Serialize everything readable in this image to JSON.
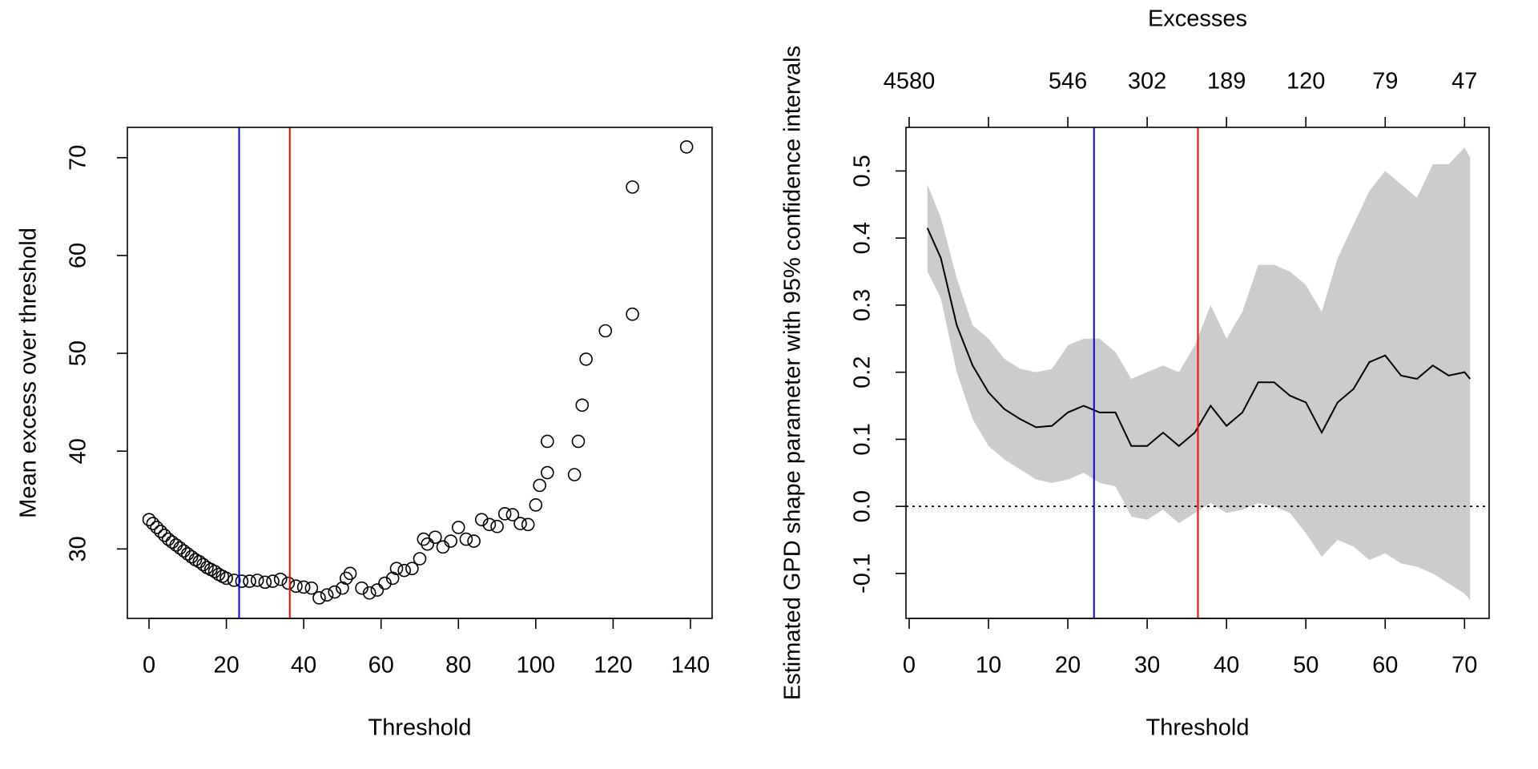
{
  "chart_data": [
    {
      "type": "scatter",
      "xlabel": "Threshold",
      "ylabel": "Mean excess over threshold",
      "x": [
        0,
        1,
        2,
        3,
        4,
        5,
        6,
        7,
        8,
        9,
        10,
        11,
        12,
        13,
        14,
        15,
        16,
        17,
        18,
        19,
        20,
        22,
        24,
        26,
        28,
        30,
        32,
        34,
        36,
        38,
        40,
        42,
        44,
        46,
        48,
        50,
        51,
        52,
        55,
        57,
        59,
        61,
        63,
        64,
        66,
        68,
        70,
        71,
        72,
        74,
        76,
        78,
        80,
        82,
        84,
        86,
        88,
        90,
        92,
        94,
        96,
        98,
        100,
        101,
        103,
        103,
        110,
        111,
        112,
        113,
        118,
        125,
        125,
        139
      ],
      "values": [
        33.0,
        32.6,
        32.2,
        31.8,
        31.4,
        31.0,
        30.7,
        30.4,
        30.1,
        29.8,
        29.5,
        29.2,
        28.9,
        28.7,
        28.4,
        28.1,
        27.9,
        27.7,
        27.4,
        27.2,
        27.0,
        26.8,
        26.7,
        26.7,
        26.8,
        26.6,
        26.7,
        26.9,
        26.5,
        26.2,
        26.1,
        26.0,
        25.0,
        25.3,
        25.6,
        26.0,
        27.0,
        27.5,
        26.0,
        25.5,
        25.8,
        26.5,
        27.0,
        28.0,
        27.8,
        28.0,
        29.0,
        31.0,
        30.5,
        31.2,
        30.2,
        30.8,
        32.2,
        31.0,
        30.8,
        33.0,
        32.5,
        32.3,
        33.6,
        33.5,
        32.6,
        32.5,
        34.5,
        36.5,
        37.8,
        41.0,
        37.6,
        41.0,
        44.7,
        49.4,
        52.3,
        54.0,
        67.0,
        71.1
      ],
      "color": "#000000",
      "xlim": [
        -5.6,
        145.6
      ],
      "xticks": [
        0,
        20,
        40,
        60,
        80,
        100,
        120,
        140
      ],
      "ylim": [
        22.9,
        73.1
      ],
      "yticks": [
        30,
        40,
        50,
        60,
        70
      ],
      "vlines": [
        {
          "x": 23.3,
          "color": "#0000ff"
        },
        {
          "x": 36.4,
          "color": "#ff0000"
        }
      ]
    },
    {
      "type": "line",
      "xlabel": "Threshold",
      "ylabel": "Estimated GPD shape parameter with 95% confidence intervals",
      "x2label": "Excesses",
      "x": [
        2.3,
        4,
        6,
        8,
        10,
        12,
        14,
        16,
        18,
        20,
        22,
        24,
        26,
        28,
        30,
        32,
        34,
        36,
        38,
        40,
        42,
        44,
        46,
        48,
        50,
        52,
        54,
        56,
        58,
        60,
        62,
        64,
        66,
        68,
        70,
        70.7
      ],
      "series": [
        {
          "color": "#000000",
          "values": [
            0.415,
            0.37,
            0.27,
            0.21,
            0.17,
            0.145,
            0.13,
            0.118,
            0.12,
            0.14,
            0.15,
            0.14,
            0.14,
            0.09,
            0.09,
            0.11,
            0.09,
            0.11,
            0.15,
            0.12,
            0.14,
            0.185,
            0.185,
            0.165,
            0.155,
            0.11,
            0.155,
            0.175,
            0.215,
            0.225,
            0.195,
            0.19,
            0.21,
            0.195,
            0.2,
            0.19
          ]
        }
      ],
      "band": {
        "color": "#cccccc",
        "upper": [
          0.48,
          0.43,
          0.34,
          0.27,
          0.25,
          0.22,
          0.205,
          0.2,
          0.205,
          0.24,
          0.25,
          0.25,
          0.23,
          0.19,
          0.2,
          0.21,
          0.2,
          0.24,
          0.3,
          0.25,
          0.29,
          0.36,
          0.36,
          0.35,
          0.33,
          0.29,
          0.37,
          0.42,
          0.47,
          0.5,
          0.48,
          0.46,
          0.51,
          0.51,
          0.535,
          0.52
        ],
        "lower": [
          0.35,
          0.31,
          0.2,
          0.13,
          0.09,
          0.07,
          0.055,
          0.04,
          0.035,
          0.04,
          0.05,
          0.035,
          0.03,
          -0.015,
          -0.02,
          -0.005,
          -0.025,
          -0.01,
          0.005,
          -0.01,
          -0.005,
          0.005,
          0.0,
          -0.01,
          -0.04,
          -0.075,
          -0.05,
          -0.06,
          -0.08,
          -0.07,
          -0.085,
          -0.09,
          -0.1,
          -0.115,
          -0.13,
          -0.14
        ]
      },
      "xlim": [
        -0.4,
        73.1
      ],
      "xticks": [
        0,
        10,
        20,
        30,
        40,
        50,
        60,
        70
      ],
      "x2ticks": [
        {
          "value": 0,
          "label": "4580"
        },
        {
          "value": 10,
          "label": null
        },
        {
          "value": 20,
          "label": "546"
        },
        {
          "value": 30,
          "label": "302"
        },
        {
          "value": 40,
          "label": "189"
        },
        {
          "value": 50,
          "label": "120"
        },
        {
          "value": 60,
          "label": "79"
        },
        {
          "value": 70,
          "label": "47"
        }
      ],
      "ylim": [
        -0.167,
        0.565
      ],
      "yticks": [
        -0.1,
        {
          "value": 0,
          "label": "0.0"
        },
        0.1,
        0.2,
        0.3,
        0.4,
        0.5
      ],
      "vlines": [
        {
          "x": 23.3,
          "color": "#0000ff"
        },
        {
          "x": 36.4,
          "color": "#ff0000"
        }
      ],
      "hline": {
        "y": 0,
        "dash": "dotted"
      }
    }
  ]
}
